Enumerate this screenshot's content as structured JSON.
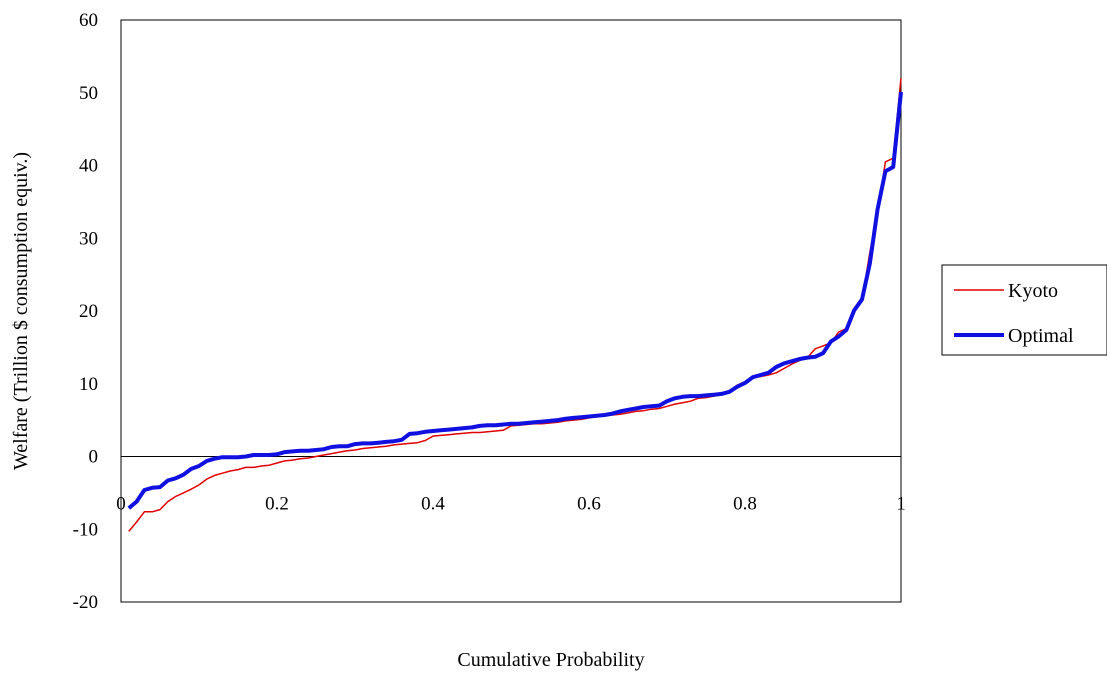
{
  "chart_data": {
    "type": "line",
    "title": "",
    "xlabel": "Cumulative Probability",
    "ylabel": "Welfare (Trillion $ consumption equiv.)",
    "xlim": [
      0,
      1
    ],
    "ylim": [
      -20,
      60
    ],
    "x_ticks": [
      0,
      0.2,
      0.4,
      0.6,
      0.8,
      1
    ],
    "x_tick_labels": [
      "0",
      "0.2",
      "0.4",
      "0.6",
      "0.8",
      "1"
    ],
    "y_ticks": [
      -20,
      -10,
      0,
      10,
      20,
      30,
      40,
      50,
      60
    ],
    "y_tick_labels": [
      "-20",
      "-10",
      "0",
      "10",
      "20",
      "30",
      "40",
      "50",
      "60"
    ],
    "grid": false,
    "legend_position": "right",
    "series": [
      {
        "name": "Kyoto",
        "color": "#e00000",
        "points": [
          [
            0.01,
            -10.3
          ],
          [
            0.02,
            -9.0
          ],
          [
            0.03,
            -7.6
          ],
          [
            0.04,
            -7.6
          ],
          [
            0.05,
            -7.3
          ],
          [
            0.06,
            -6.2
          ],
          [
            0.07,
            -5.5
          ],
          [
            0.08,
            -5.0
          ],
          [
            0.09,
            -4.5
          ],
          [
            0.1,
            -3.9
          ],
          [
            0.11,
            -3.1
          ],
          [
            0.12,
            -2.6
          ],
          [
            0.13,
            -2.3
          ],
          [
            0.14,
            -2.0
          ],
          [
            0.15,
            -1.8
          ],
          [
            0.16,
            -1.5
          ],
          [
            0.17,
            -1.5
          ],
          [
            0.18,
            -1.3
          ],
          [
            0.19,
            -1.2
          ],
          [
            0.2,
            -0.9
          ],
          [
            0.21,
            -0.6
          ],
          [
            0.22,
            -0.5
          ],
          [
            0.23,
            -0.3
          ],
          [
            0.24,
            -0.2
          ],
          [
            0.25,
            0.0
          ],
          [
            0.26,
            0.2
          ],
          [
            0.27,
            0.4
          ],
          [
            0.28,
            0.6
          ],
          [
            0.29,
            0.8
          ],
          [
            0.3,
            0.9
          ],
          [
            0.31,
            1.1
          ],
          [
            0.32,
            1.2
          ],
          [
            0.33,
            1.3
          ],
          [
            0.34,
            1.4
          ],
          [
            0.35,
            1.6
          ],
          [
            0.36,
            1.7
          ],
          [
            0.37,
            1.8
          ],
          [
            0.38,
            1.9
          ],
          [
            0.39,
            2.2
          ],
          [
            0.4,
            2.8
          ],
          [
            0.41,
            2.9
          ],
          [
            0.42,
            3.0
          ],
          [
            0.43,
            3.1
          ],
          [
            0.44,
            3.2
          ],
          [
            0.45,
            3.3
          ],
          [
            0.46,
            3.3
          ],
          [
            0.47,
            3.4
          ],
          [
            0.48,
            3.5
          ],
          [
            0.49,
            3.6
          ],
          [
            0.5,
            4.2
          ],
          [
            0.51,
            4.3
          ],
          [
            0.52,
            4.4
          ],
          [
            0.53,
            4.5
          ],
          [
            0.54,
            4.5
          ],
          [
            0.55,
            4.6
          ],
          [
            0.56,
            4.7
          ],
          [
            0.57,
            4.9
          ],
          [
            0.58,
            5.0
          ],
          [
            0.59,
            5.1
          ],
          [
            0.6,
            5.3
          ],
          [
            0.61,
            5.5
          ],
          [
            0.62,
            5.6
          ],
          [
            0.63,
            5.7
          ],
          [
            0.64,
            5.8
          ],
          [
            0.65,
            6.0
          ],
          [
            0.66,
            6.2
          ],
          [
            0.67,
            6.3
          ],
          [
            0.68,
            6.5
          ],
          [
            0.69,
            6.6
          ],
          [
            0.7,
            6.9
          ],
          [
            0.71,
            7.2
          ],
          [
            0.72,
            7.4
          ],
          [
            0.73,
            7.6
          ],
          [
            0.74,
            8.0
          ],
          [
            0.75,
            8.1
          ],
          [
            0.76,
            8.3
          ],
          [
            0.77,
            8.5
          ],
          [
            0.78,
            9.0
          ],
          [
            0.79,
            9.8
          ],
          [
            0.8,
            10.3
          ],
          [
            0.81,
            10.8
          ],
          [
            0.82,
            11.0
          ],
          [
            0.83,
            11.2
          ],
          [
            0.84,
            11.5
          ],
          [
            0.85,
            12.1
          ],
          [
            0.86,
            12.7
          ],
          [
            0.87,
            13.2
          ],
          [
            0.88,
            13.6
          ],
          [
            0.89,
            14.8
          ],
          [
            0.9,
            15.2
          ],
          [
            0.91,
            15.6
          ],
          [
            0.92,
            17.1
          ],
          [
            0.93,
            17.6
          ],
          [
            0.94,
            20.1
          ],
          [
            0.95,
            21.5
          ],
          [
            0.96,
            28.0
          ],
          [
            0.97,
            33.5
          ],
          [
            0.98,
            40.5
          ],
          [
            0.99,
            41.0
          ],
          [
            1.0,
            52.0
          ]
        ]
      },
      {
        "name": "Optimal",
        "color": "#1010e0",
        "points": [
          [
            0.01,
            -7.1
          ],
          [
            0.02,
            -6.2
          ],
          [
            0.03,
            -4.6
          ],
          [
            0.04,
            -4.3
          ],
          [
            0.05,
            -4.2
          ],
          [
            0.06,
            -3.3
          ],
          [
            0.07,
            -3.0
          ],
          [
            0.08,
            -2.5
          ],
          [
            0.09,
            -1.7
          ],
          [
            0.1,
            -1.3
          ],
          [
            0.11,
            -0.6
          ],
          [
            0.12,
            -0.3
          ],
          [
            0.13,
            -0.1
          ],
          [
            0.14,
            -0.1
          ],
          [
            0.15,
            -0.1
          ],
          [
            0.16,
            0.0
          ],
          [
            0.17,
            0.2
          ],
          [
            0.18,
            0.2
          ],
          [
            0.19,
            0.2
          ],
          [
            0.2,
            0.3
          ],
          [
            0.21,
            0.6
          ],
          [
            0.22,
            0.7
          ],
          [
            0.23,
            0.8
          ],
          [
            0.24,
            0.8
          ],
          [
            0.25,
            0.9
          ],
          [
            0.26,
            1.0
          ],
          [
            0.27,
            1.3
          ],
          [
            0.28,
            1.4
          ],
          [
            0.29,
            1.4
          ],
          [
            0.3,
            1.7
          ],
          [
            0.31,
            1.8
          ],
          [
            0.32,
            1.8
          ],
          [
            0.33,
            1.9
          ],
          [
            0.34,
            2.0
          ],
          [
            0.35,
            2.1
          ],
          [
            0.36,
            2.3
          ],
          [
            0.37,
            3.1
          ],
          [
            0.38,
            3.2
          ],
          [
            0.39,
            3.4
          ],
          [
            0.4,
            3.5
          ],
          [
            0.41,
            3.6
          ],
          [
            0.42,
            3.7
          ],
          [
            0.43,
            3.8
          ],
          [
            0.44,
            3.9
          ],
          [
            0.45,
            4.0
          ],
          [
            0.46,
            4.2
          ],
          [
            0.47,
            4.3
          ],
          [
            0.48,
            4.3
          ],
          [
            0.49,
            4.4
          ],
          [
            0.5,
            4.5
          ],
          [
            0.51,
            4.5
          ],
          [
            0.52,
            4.6
          ],
          [
            0.53,
            4.7
          ],
          [
            0.54,
            4.8
          ],
          [
            0.55,
            4.9
          ],
          [
            0.56,
            5.0
          ],
          [
            0.57,
            5.2
          ],
          [
            0.58,
            5.3
          ],
          [
            0.59,
            5.4
          ],
          [
            0.6,
            5.5
          ],
          [
            0.61,
            5.6
          ],
          [
            0.62,
            5.7
          ],
          [
            0.63,
            5.9
          ],
          [
            0.64,
            6.2
          ],
          [
            0.65,
            6.4
          ],
          [
            0.66,
            6.6
          ],
          [
            0.67,
            6.8
          ],
          [
            0.68,
            6.9
          ],
          [
            0.69,
            7.0
          ],
          [
            0.7,
            7.6
          ],
          [
            0.71,
            8.0
          ],
          [
            0.72,
            8.2
          ],
          [
            0.73,
            8.3
          ],
          [
            0.74,
            8.3
          ],
          [
            0.75,
            8.4
          ],
          [
            0.76,
            8.5
          ],
          [
            0.77,
            8.6
          ],
          [
            0.78,
            8.9
          ],
          [
            0.79,
            9.6
          ],
          [
            0.8,
            10.1
          ],
          [
            0.81,
            10.9
          ],
          [
            0.82,
            11.2
          ],
          [
            0.83,
            11.5
          ],
          [
            0.84,
            12.3
          ],
          [
            0.85,
            12.8
          ],
          [
            0.86,
            13.1
          ],
          [
            0.87,
            13.4
          ],
          [
            0.88,
            13.6
          ],
          [
            0.89,
            13.7
          ],
          [
            0.9,
            14.2
          ],
          [
            0.91,
            15.8
          ],
          [
            0.92,
            16.5
          ],
          [
            0.93,
            17.4
          ],
          [
            0.94,
            20.1
          ],
          [
            0.95,
            21.6
          ],
          [
            0.96,
            26.5
          ],
          [
            0.97,
            34.0
          ],
          [
            0.98,
            39.2
          ],
          [
            0.99,
            39.8
          ],
          [
            1.0,
            50.1
          ]
        ]
      }
    ]
  }
}
